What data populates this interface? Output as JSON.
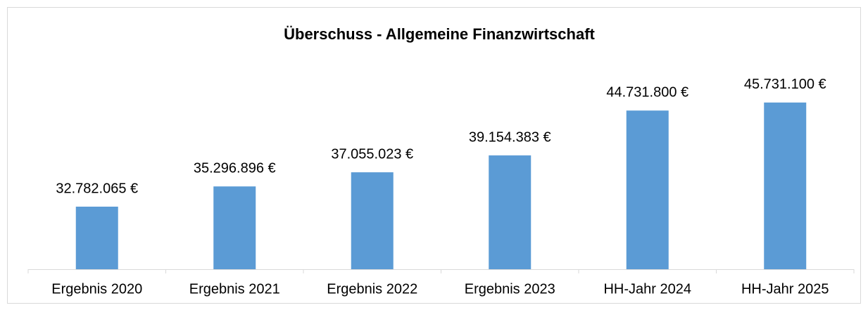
{
  "chart_data": {
    "type": "bar",
    "title": "Überschuss - Allgemeine Finanzwirtschaft",
    "categories": [
      "Ergebnis 2020",
      "Ergebnis 2021",
      "Ergebnis 2022",
      "Ergebnis 2023",
      "HH-Jahr 2024",
      "HH-Jahr 2025"
    ],
    "values": [
      32782065,
      35296896,
      37055023,
      39154383,
      44731800,
      45731100
    ],
    "value_labels": [
      "32.782.065 €",
      "35.296.896 €",
      "37.055.023 €",
      "39.154.383 €",
      "44.731.800 €",
      "45.731.100 €"
    ],
    "color": "#5b9bd5",
    "ylim": [
      25000000,
      50000000
    ]
  }
}
